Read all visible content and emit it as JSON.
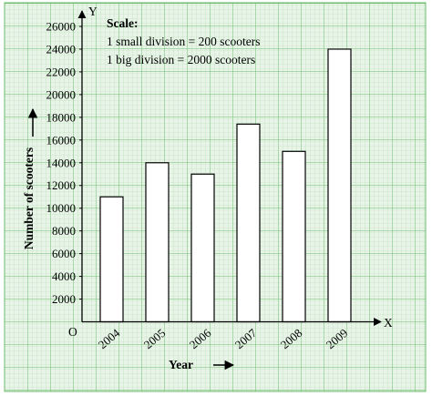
{
  "chart_data": {
    "type": "bar",
    "categories": [
      "2004",
      "2005",
      "2006",
      "2007",
      "2008",
      "2009"
    ],
    "values": [
      11000,
      14000,
      13000,
      17400,
      15000,
      24000
    ],
    "ylim": [
      0,
      26000
    ],
    "yticks": [
      2000,
      4000,
      6000,
      8000,
      10000,
      12000,
      14000,
      16000,
      18000,
      20000,
      22000,
      24000,
      26000
    ],
    "xlabel": "Year",
    "ylabel": "Number of scooters",
    "grid": true
  },
  "axes": {
    "x_letter": "X",
    "y_letter": "Y",
    "origin_label": "O"
  },
  "scale_box": {
    "heading": "Scale:",
    "line1": "1 small division = 200 scooters",
    "line2": "1 big division = 2000 scooters"
  },
  "colors": {
    "grid_minor": "#b6dbb6",
    "grid_major": "#6cbc6c",
    "paper": "#e7f4e7",
    "bar_fill": "#ffffff",
    "ink": "#000000"
  }
}
